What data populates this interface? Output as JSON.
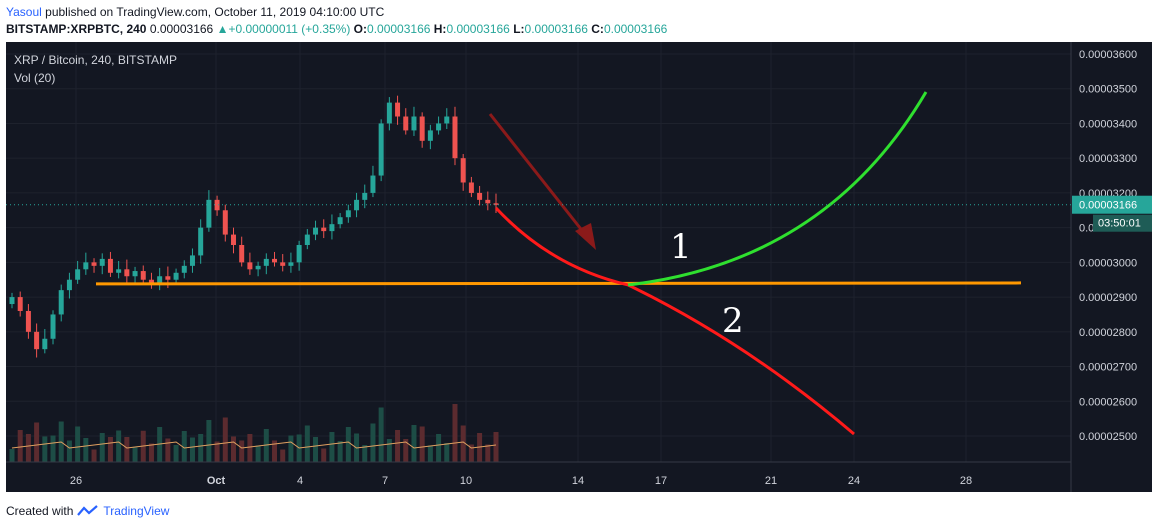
{
  "header": {
    "author": "Yasoul",
    "published": "published on TradingView.com, October 11, 2019 04:10:00 UTC",
    "symbol": "BITSTAMP:XRPBTC, 240",
    "price": "0.00003166",
    "change": "+0.00000011 (+0.35%)",
    "o_label": "O:",
    "o": "0.00003166",
    "h_label": "H:",
    "h": "0.00003166",
    "l_label": "L:",
    "l": "0.00003166",
    "c_label": "C:",
    "c": "0.00003166"
  },
  "footer": {
    "created": "Created with",
    "brand": "TradingView"
  },
  "chart_data": {
    "type": "candlestick",
    "title": "XRP / Bitcoin, 240, BITSTAMP",
    "indicator": "Vol (20)",
    "y_ticks": [
      "0.00003600",
      "0.00003500",
      "0.00003400",
      "0.00003300",
      "0.00003200",
      "0.00003100",
      "0.00003000",
      "0.00002900",
      "0.00002800",
      "0.00002700",
      "0.00002600",
      "0.00002500"
    ],
    "y_tick_values": [
      3600,
      3500,
      3400,
      3300,
      3200,
      3100,
      3000,
      2900,
      2800,
      2700,
      2600,
      2500
    ],
    "x_ticks": [
      "26",
      "Oct",
      "4",
      "7",
      "10",
      "14",
      "17",
      "21",
      "24",
      "28"
    ],
    "last_price_label": "0.00003166",
    "last_price": 3166,
    "countdown": "03:50:01",
    "colors": {
      "up": "#26a69a",
      "down": "#ef5350",
      "bg": "#131722",
      "support": "#ff9800",
      "path1": "#2fe02f",
      "path2": "#ff1a1a",
      "arrow": "#8b1a1a",
      "last": "#26a69a"
    },
    "closes": [
      2900,
      2860,
      2800,
      2750,
      2780,
      2850,
      2920,
      2950,
      2980,
      3000,
      2990,
      3010,
      2970,
      2980,
      2960,
      2975,
      2950,
      2940,
      2960,
      2950,
      2970,
      2990,
      3020,
      3100,
      3180,
      3150,
      3080,
      3050,
      3000,
      2980,
      2990,
      3010,
      3000,
      2990,
      3000,
      3050,
      3080,
      3100,
      3090,
      3110,
      3130,
      3150,
      3180,
      3200,
      3250,
      3400,
      3460,
      3420,
      3380,
      3420,
      3350,
      3380,
      3400,
      3420,
      3300,
      3230,
      3200,
      3180,
      3170,
      3166
    ],
    "volume_avg": 30,
    "support_level": 2935,
    "annotations": [
      "1",
      "2"
    ]
  }
}
